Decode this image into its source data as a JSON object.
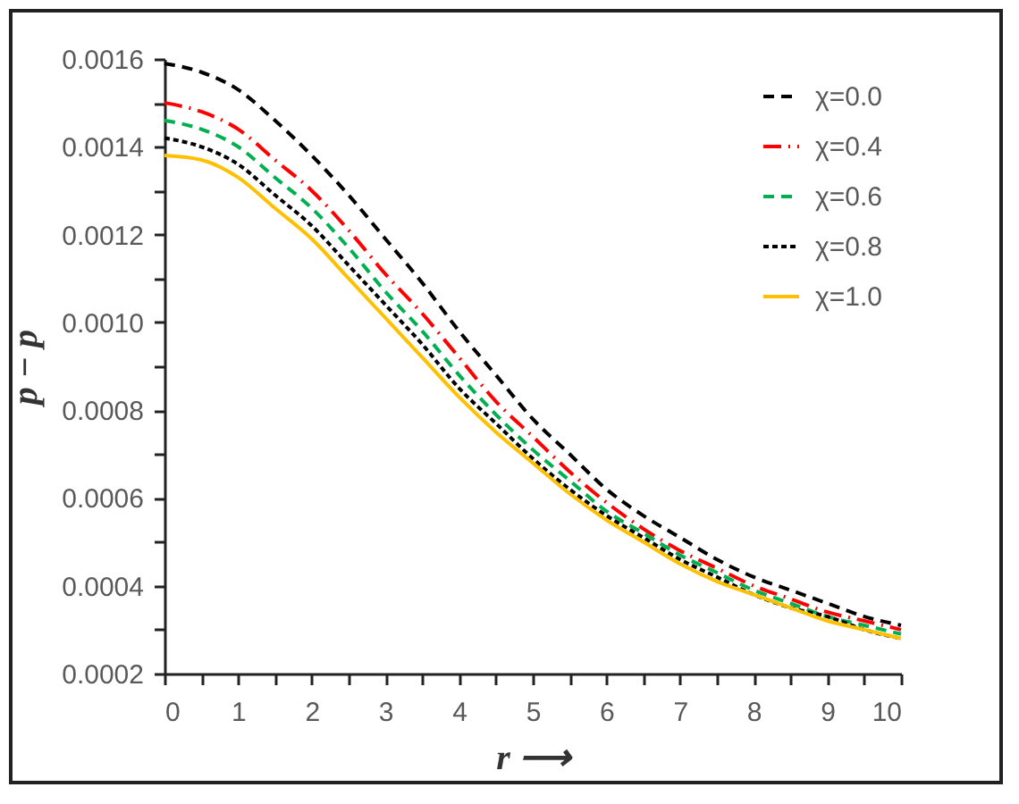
{
  "chart_data": {
    "type": "line",
    "xlabel": "r ⟶",
    "ylabel": "p − p",
    "x": [
      0,
      0.5,
      1,
      1.5,
      2,
      2.5,
      3,
      3.5,
      4,
      4.5,
      5,
      5.5,
      6,
      6.5,
      7,
      7.5,
      8,
      8.5,
      9,
      9.5,
      10
    ],
    "series": [
      {
        "name": "χ=0.0",
        "color": "#000000",
        "line_style": "dashed",
        "values": [
          0.00159,
          0.00157,
          0.00153,
          0.00146,
          0.00138,
          0.00129,
          0.00119,
          0.00109,
          0.00098,
          0.00088,
          0.00078,
          0.0007,
          0.00062,
          0.00056,
          0.00051,
          0.00046,
          0.00042,
          0.00039,
          0.00036,
          0.00033,
          0.00031
        ]
      },
      {
        "name": "χ=0.4",
        "color": "#ff0000",
        "line_style": "dashdot",
        "values": [
          0.0015,
          0.00148,
          0.00144,
          0.00137,
          0.0013,
          0.00121,
          0.00111,
          0.00102,
          0.00092,
          0.00082,
          0.00074,
          0.00066,
          0.00059,
          0.00053,
          0.00048,
          0.00044,
          0.0004,
          0.00037,
          0.00034,
          0.00032,
          0.0003
        ]
      },
      {
        "name": "χ=0.6",
        "color": "#00b050",
        "line_style": "dashed",
        "values": [
          0.00146,
          0.00144,
          0.0014,
          0.00133,
          0.00126,
          0.00117,
          0.00107,
          0.00098,
          0.00088,
          0.00079,
          0.00071,
          0.00064,
          0.00057,
          0.00052,
          0.00047,
          0.00043,
          0.00039,
          0.00036,
          0.00033,
          0.00031,
          0.00029
        ]
      },
      {
        "name": "χ=0.8",
        "color": "#000000",
        "line_style": "dotted",
        "values": [
          0.00142,
          0.0014,
          0.00136,
          0.00129,
          0.00122,
          0.00113,
          0.00104,
          0.00095,
          0.00085,
          0.00077,
          0.00069,
          0.00062,
          0.00056,
          0.00051,
          0.00046,
          0.00042,
          0.00038,
          0.00035,
          0.00033,
          0.0003,
          0.00028
        ]
      },
      {
        "name": "χ=1.0",
        "color": "#ffc000",
        "line_style": "solid",
        "values": [
          0.00138,
          0.00137,
          0.00133,
          0.00126,
          0.00119,
          0.0011,
          0.00101,
          0.00092,
          0.00083,
          0.00075,
          0.00068,
          0.00061,
          0.00055,
          0.0005,
          0.00045,
          0.00041,
          0.00038,
          0.00035,
          0.00032,
          0.0003,
          0.00028
        ]
      }
    ],
    "xlim": [
      0,
      10
    ],
    "xticks": [
      0,
      {
        "value": 0.5,
        "label": null
      },
      1,
      {
        "value": 1.5,
        "label": null
      },
      2,
      {
        "value": 2.5,
        "label": null
      },
      3,
      {
        "value": 3.5,
        "label": null
      },
      4,
      {
        "value": 4.5,
        "label": null
      },
      5,
      {
        "value": 5.5,
        "label": null
      },
      6,
      {
        "value": 6.5,
        "label": null
      },
      7,
      {
        "value": 7.5,
        "label": null
      },
      8,
      {
        "value": 8.5,
        "label": null
      },
      9,
      {
        "value": 9.5,
        "label": null
      },
      10
    ],
    "ylim": [
      0.0002,
      0.0016
    ],
    "yticks": [
      {
        "value": 0.0002,
        "label": "0.0002"
      },
      {
        "value": 0.0003,
        "label": null
      },
      {
        "value": 0.0004,
        "label": "0.0004"
      },
      {
        "value": 0.0005,
        "label": null
      },
      {
        "value": 0.0006,
        "label": "0.0006"
      },
      {
        "value": 0.0007,
        "label": null
      },
      {
        "value": 0.0008,
        "label": "0.0008"
      },
      {
        "value": 0.0009,
        "label": null
      },
      {
        "value": 0.001,
        "label": "0.0010"
      },
      {
        "value": 0.0011,
        "label": null
      },
      {
        "value": 0.0012,
        "label": "0.0012"
      },
      {
        "value": 0.0013,
        "label": null
      },
      {
        "value": 0.0014,
        "label": "0.0014"
      },
      {
        "value": 0.0015,
        "label": null
      },
      {
        "value": 0.0016,
        "label": "0.0016"
      }
    ],
    "grid": false,
    "legend": "top right"
  }
}
